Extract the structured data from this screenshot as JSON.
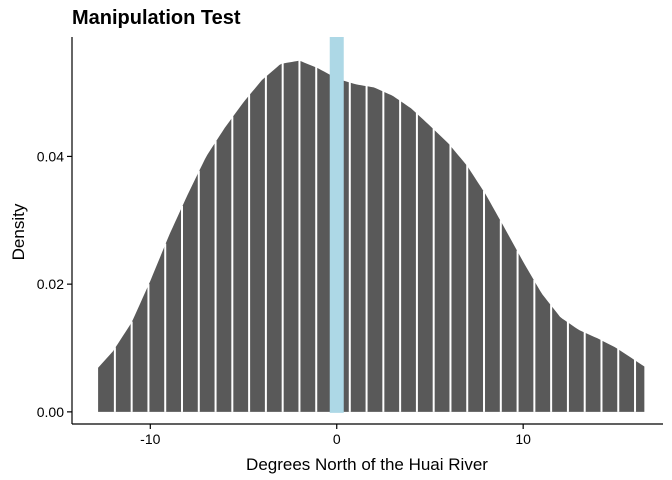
{
  "chart_data": {
    "type": "area",
    "title": "Manipulation Test",
    "xlabel": "Degrees North of the Huai River",
    "ylabel": "Density",
    "xlim": [
      -14.2,
      17.5
    ],
    "ylim": [
      -0.0019,
      0.0587
    ],
    "xticks": [
      -10,
      0,
      10
    ],
    "yticks": [
      0.0,
      0.02,
      0.04
    ],
    "ytick_labels": [
      "0.00",
      "0.02",
      "0.04"
    ],
    "grid": false,
    "fill_color": "#595959",
    "separator_color": "#ffffff",
    "cutoff": {
      "x": 0,
      "color": "#add8e6"
    },
    "series": [
      {
        "x": [
          -12.8,
          -12.0,
          -11.0,
          -10.0,
          -9.0,
          -8.0,
          -7.0,
          -6.0,
          -5.0,
          -4.0,
          -3.0,
          -2.0,
          -1.0,
          0.0,
          1.0,
          2.0,
          3.0,
          4.0,
          5.0,
          6.0,
          7.0,
          8.0,
          9.0,
          10.0,
          11.0,
          12.0,
          13.0,
          14.0,
          15.0,
          16.5
        ],
        "values": [
          0.0069,
          0.0095,
          0.014,
          0.0205,
          0.0276,
          0.034,
          0.04,
          0.0445,
          0.0485,
          0.052,
          0.0545,
          0.055,
          0.0538,
          0.0522,
          0.0513,
          0.0508,
          0.0495,
          0.0475,
          0.0448,
          0.042,
          0.0385,
          0.034,
          0.0288,
          0.0235,
          0.0185,
          0.0148,
          0.0128,
          0.0115,
          0.01,
          0.0071
        ]
      }
    ]
  }
}
